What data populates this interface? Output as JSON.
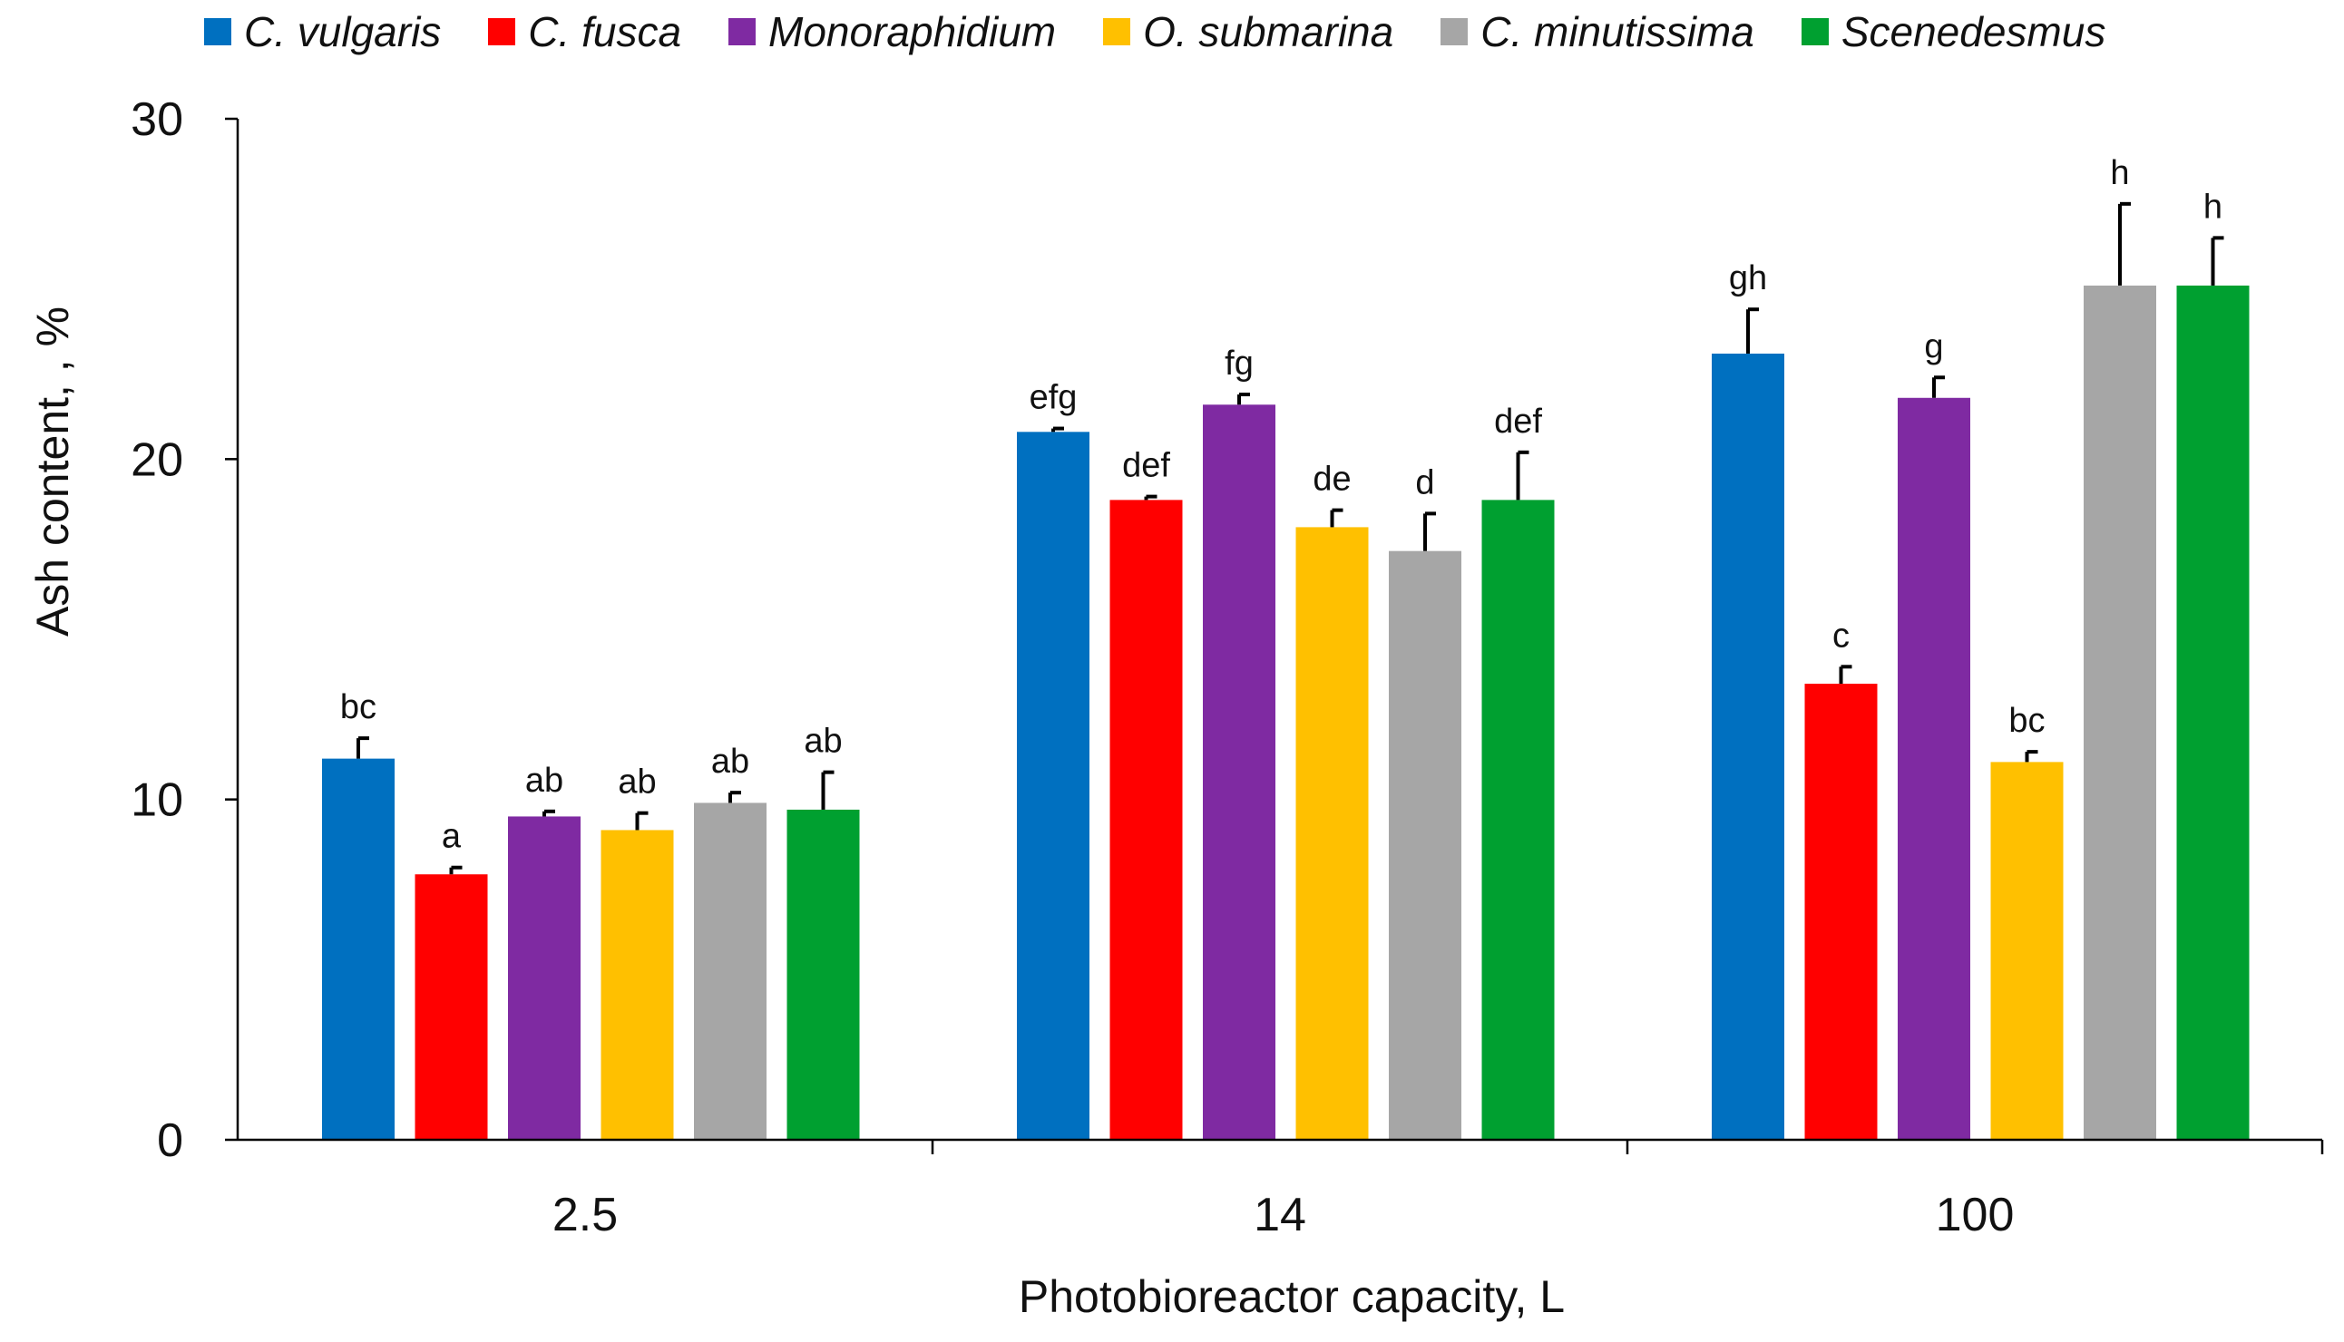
{
  "chart_data": {
    "type": "bar",
    "title": "",
    "xlabel": "Photobioreactor capacity, L",
    "ylabel": "Ash content, , %",
    "ylim": [
      0,
      30
    ],
    "yticks": [
      0,
      10,
      20,
      30
    ],
    "categories": [
      "2.5",
      "14",
      "100"
    ],
    "series": [
      {
        "name": "C. vulgaris",
        "color": "#0070C0",
        "values": [
          11.2,
          20.8,
          23.1
        ],
        "errors": [
          0.6,
          0.1,
          1.3
        ],
        "labels": [
          "bc",
          "efg",
          "gh"
        ]
      },
      {
        "name": "C. fusca",
        "color": "#FF0000",
        "values": [
          7.8,
          18.8,
          13.4
        ],
        "errors": [
          0.2,
          0.1,
          0.5
        ],
        "labels": [
          "a",
          "def",
          "c"
        ]
      },
      {
        "name": "Monoraphidium",
        "color": "#7F2AA2",
        "values": [
          9.5,
          21.6,
          21.8
        ],
        "errors": [
          0.15,
          0.3,
          0.6
        ],
        "labels": [
          "ab",
          "fg",
          "g"
        ]
      },
      {
        "name": "O. submarina",
        "color": "#FFC000",
        "values": [
          9.1,
          18.0,
          11.1
        ],
        "errors": [
          0.5,
          0.5,
          0.3
        ],
        "labels": [
          "ab",
          "de",
          "bc"
        ]
      },
      {
        "name": "C. minutissima",
        "color": "#A6A6A6",
        "values": [
          9.9,
          17.3,
          25.1
        ],
        "errors": [
          0.3,
          1.1,
          2.4
        ],
        "labels": [
          "ab",
          "d",
          "h"
        ]
      },
      {
        "name": "Scenedesmus",
        "color": "#00A030",
        "values": [
          9.7,
          18.8,
          25.1
        ],
        "errors": [
          1.1,
          1.4,
          1.4
        ],
        "labels": [
          "ab",
          "def",
          "h"
        ]
      }
    ],
    "legend_position": "top",
    "grid": false
  }
}
